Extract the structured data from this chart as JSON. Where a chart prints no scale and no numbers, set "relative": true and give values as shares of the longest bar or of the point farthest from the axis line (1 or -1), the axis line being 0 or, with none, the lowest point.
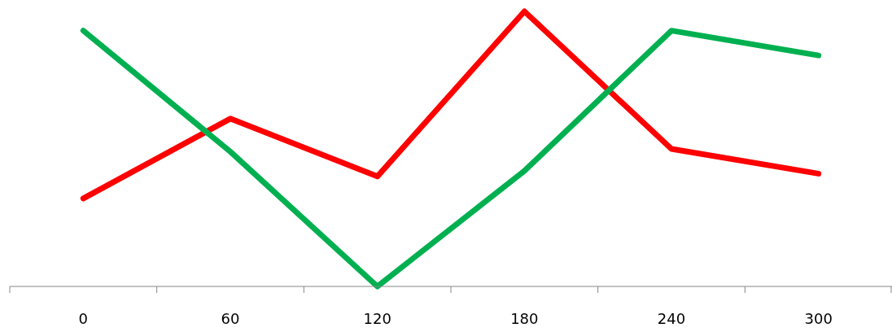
{
  "chart_data": {
    "type": "line",
    "relative": true,
    "categories": [
      "0",
      "60",
      "120",
      "180",
      "240",
      "300"
    ],
    "series": [
      {
        "color": "#ff0000",
        "values": [
          0.32,
          0.61,
          0.4,
          1.0,
          0.5,
          0.41
        ]
      },
      {
        "color": "#00b050",
        "values": [
          0.93,
          0.49,
          0,
          0.42,
          0.93,
          0.84
        ]
      }
    ],
    "marker": "none",
    "line_style": "solid"
  }
}
